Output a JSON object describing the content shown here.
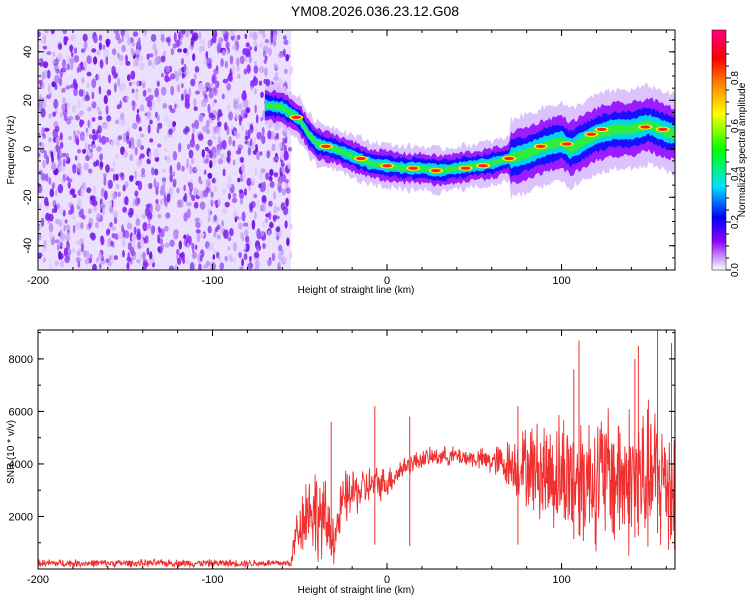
{
  "title": "YM08.2026.036.23.12.G08",
  "chart_data": [
    {
      "type": "heatmap",
      "name": "spectrogram",
      "xlabel": "Height of straight line (km)",
      "ylabel": "Frequency (Hz)",
      "xlim": [
        -200,
        165
      ],
      "ylim": [
        -50,
        49
      ],
      "xticks": [
        -200,
        -100,
        0,
        100
      ],
      "yticks": [
        -40,
        -20,
        0,
        20,
        40
      ],
      "colorbar": {
        "label": "Normalized spectral amplitude",
        "range": [
          0,
          1
        ],
        "ticks": [
          0.0,
          0.2,
          0.4,
          0.6,
          0.8
        ],
        "colors": [
          "#ffffff",
          "#cc99ff",
          "#8f00ff",
          "#0000ff",
          "#00e5ff",
          "#00ff00",
          "#ffff00",
          "#ff8000",
          "#ff0000",
          "#ff0080"
        ]
      },
      "noise_region_x": [
        -200,
        -55
      ],
      "ridge": {
        "x": [
          -70,
          -60,
          -50,
          -45,
          -40,
          -35,
          -30,
          -20,
          -10,
          0,
          10,
          20,
          30,
          40,
          50,
          60,
          70,
          80,
          90,
          100,
          105,
          110,
          120,
          130,
          140,
          150,
          160,
          165
        ],
        "freq": [
          18,
          17,
          12,
          6,
          2,
          1,
          0,
          -3,
          -6,
          -7,
          -8,
          -8,
          -9,
          -8,
          -7,
          -6,
          -4,
          -2,
          1,
          3,
          0,
          2,
          6,
          8,
          8,
          10,
          7,
          6
        ]
      },
      "ridge_peaks": [
        {
          "x": -52,
          "freq": 13
        },
        {
          "x": -35,
          "freq": 1
        },
        {
          "x": -15,
          "freq": -4
        },
        {
          "x": 0,
          "freq": -7
        },
        {
          "x": 15,
          "freq": -8
        },
        {
          "x": 28,
          "freq": -9
        },
        {
          "x": 45,
          "freq": -8
        },
        {
          "x": 55,
          "freq": -7
        },
        {
          "x": 70,
          "freq": -4
        },
        {
          "x": 88,
          "freq": 1
        },
        {
          "x": 103,
          "freq": 2
        },
        {
          "x": 117,
          "freq": 6
        },
        {
          "x": 123,
          "freq": 8
        },
        {
          "x": 148,
          "freq": 9
        },
        {
          "x": 158,
          "freq": 8
        }
      ]
    },
    {
      "type": "line",
      "name": "snr",
      "xlabel": "Height of straight line (km)",
      "ylabel": "SNR (10 * v/v)",
      "xlim": [
        -200,
        165
      ],
      "ylim": [
        0,
        9100
      ],
      "xticks": [
        -200,
        -100,
        0,
        100
      ],
      "yticks": [
        2000,
        4000,
        6000,
        8000
      ],
      "color": "#f03030",
      "envelope": {
        "x": [
          -200,
          -55,
          -52,
          -45,
          -40,
          -35,
          -30,
          -25,
          -20,
          -15,
          -10,
          0,
          10,
          20,
          30,
          40,
          50,
          60,
          70,
          80,
          90,
          100,
          110,
          120,
          130,
          140,
          150,
          160,
          165
        ],
        "mean": [
          220,
          220,
          1400,
          2400,
          2100,
          1700,
          1200,
          2600,
          2900,
          3000,
          3200,
          3300,
          3900,
          4200,
          4300,
          4300,
          4200,
          4100,
          4000,
          3900,
          3700,
          3600,
          3500,
          3500,
          3500,
          3400,
          3400,
          3400,
          3400
        ],
        "spread": [
          120,
          120,
          800,
          1300,
          1500,
          1300,
          800,
          900,
          800,
          700,
          600,
          500,
          350,
          300,
          300,
          300,
          300,
          450,
          800,
          1300,
          1700,
          2000,
          2100,
          2200,
          2300,
          2400,
          2400,
          2400,
          2400
        ]
      },
      "peaks": [
        {
          "x": -32,
          "y": 5600
        },
        {
          "x": -7,
          "y": 6200
        },
        {
          "x": 13,
          "y": 5800
        },
        {
          "x": 75,
          "y": 6200
        },
        {
          "x": 107,
          "y": 7600
        },
        {
          "x": 110,
          "y": 8700
        },
        {
          "x": 142,
          "y": 8000
        },
        {
          "x": 144,
          "y": 8500
        },
        {
          "x": 155,
          "y": 9100
        },
        {
          "x": 163,
          "y": 8600
        }
      ]
    }
  ]
}
